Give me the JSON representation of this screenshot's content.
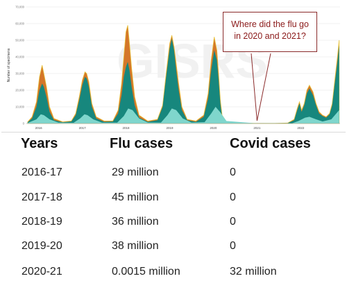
{
  "chart_data": {
    "type": "area",
    "ylabel": "Number of specimens",
    "ylim": [
      0,
      70000
    ],
    "yticks": [
      "0",
      "10,000",
      "20,000",
      "30,000",
      "40,000",
      "50,000",
      "60,000",
      "70,000"
    ],
    "xticks": [
      "2016",
      "2017",
      "2018",
      "2019",
      "2020",
      "2021",
      "2022"
    ],
    "colors": {
      "orange": "#d4762a",
      "teal": "#17877d",
      "light": "#7fd6cc",
      "yellow": "#e8c23a"
    },
    "series_total": {
      "x": [
        2015.75,
        2015.85,
        2015.95,
        2016.02,
        2016.08,
        2016.12,
        2016.18,
        2016.25,
        2016.35,
        2016.55,
        2016.75,
        2016.85,
        2016.93,
        2017.0,
        2017.06,
        2017.1,
        2017.15,
        2017.22,
        2017.32,
        2017.5,
        2017.7,
        2017.82,
        2017.9,
        2017.95,
        2018.0,
        2018.04,
        2018.08,
        2018.13,
        2018.2,
        2018.3,
        2018.5,
        2018.72,
        2018.84,
        2018.92,
        2019.0,
        2019.05,
        2019.1,
        2019.14,
        2019.2,
        2019.28,
        2019.4,
        2019.6,
        2019.78,
        2019.88,
        2019.95,
        2020.02,
        2020.08,
        2020.12,
        2020.16,
        2020.2,
        2020.3,
        2020.6,
        2021.0,
        2021.4,
        2021.7,
        2021.85,
        2021.92,
        2021.97,
        2022.02,
        2022.08,
        2022.14,
        2022.2,
        2022.28,
        2022.35,
        2022.42,
        2022.5,
        2022.58,
        2022.66,
        2022.72,
        2022.78,
        2022.84,
        2022.88
      ],
      "y": [
        1000,
        4000,
        13000,
        28000,
        35000,
        30000,
        22000,
        10000,
        3000,
        1000,
        1500,
        6000,
        16000,
        26000,
        31000,
        30000,
        25000,
        12000,
        4000,
        1500,
        1500,
        8000,
        24000,
        40000,
        55000,
        59000,
        48000,
        33000,
        16000,
        5000,
        1500,
        2500,
        11000,
        30000,
        48000,
        53000,
        46000,
        38000,
        25000,
        10000,
        2500,
        1500,
        5000,
        18000,
        38000,
        52000,
        44000,
        30000,
        14000,
        5000,
        1000,
        300,
        100,
        100,
        300,
        2500,
        9000,
        13000,
        8000,
        12000,
        20000,
        23000,
        19000,
        12000,
        7000,
        5000,
        4000,
        6000,
        12000,
        26000,
        40000,
        50000
      ]
    },
    "series_teal": {
      "x": [
        2015.75,
        2015.85,
        2015.95,
        2016.02,
        2016.08,
        2016.12,
        2016.18,
        2016.25,
        2016.35,
        2016.55,
        2016.75,
        2016.85,
        2016.93,
        2017.0,
        2017.06,
        2017.1,
        2017.15,
        2017.22,
        2017.32,
        2017.5,
        2017.7,
        2017.82,
        2017.9,
        2017.95,
        2018.0,
        2018.04,
        2018.08,
        2018.13,
        2018.2,
        2018.3,
        2018.5,
        2018.72,
        2018.84,
        2018.92,
        2019.0,
        2019.05,
        2019.1,
        2019.14,
        2019.2,
        2019.28,
        2019.4,
        2019.6,
        2019.78,
        2019.88,
        2019.95,
        2020.02,
        2020.08,
        2020.12,
        2020.16,
        2020.2,
        2020.3,
        2020.6,
        2021.0,
        2021.4,
        2021.7,
        2021.85,
        2021.92,
        2021.97,
        2022.02,
        2022.08,
        2022.14,
        2022.2,
        2022.28,
        2022.35,
        2022.42,
        2022.5,
        2022.58,
        2022.66,
        2022.72,
        2022.78,
        2022.84,
        2022.88
      ],
      "y": [
        700,
        3000,
        10000,
        20000,
        24000,
        22000,
        16000,
        7000,
        2000,
        700,
        1200,
        5000,
        14000,
        23000,
        28000,
        27000,
        22000,
        10000,
        3000,
        1000,
        1200,
        6000,
        17000,
        28000,
        34000,
        37000,
        32000,
        22000,
        11000,
        3500,
        1000,
        2000,
        10000,
        28000,
        45000,
        51000,
        44000,
        34000,
        21000,
        8000,
        2000,
        1000,
        4000,
        15000,
        32000,
        44000,
        38000,
        26000,
        12000,
        4000,
        800,
        200,
        80,
        80,
        200,
        2000,
        8000,
        12000,
        7000,
        11000,
        18000,
        21000,
        17000,
        11000,
        6000,
        4500,
        3500,
        5500,
        11000,
        24000,
        37000,
        47000
      ]
    },
    "series_light": {
      "x": [
        2015.75,
        2015.95,
        2016.05,
        2016.12,
        2016.25,
        2016.45,
        2016.8,
        2016.95,
        2017.05,
        2017.12,
        2017.25,
        2017.45,
        2017.8,
        2017.95,
        2018.05,
        2018.15,
        2018.3,
        2018.5,
        2018.8,
        2018.95,
        2019.05,
        2019.15,
        2019.3,
        2019.5,
        2019.8,
        2019.95,
        2020.05,
        2020.15,
        2020.3,
        2021.0,
        2021.8,
        2021.95,
        2022.1,
        2022.2,
        2022.35,
        2022.5,
        2022.7,
        2022.88
      ],
      "y": [
        300,
        2500,
        5500,
        5000,
        2500,
        600,
        400,
        3000,
        5500,
        5000,
        2500,
        500,
        500,
        4500,
        9000,
        8000,
        3000,
        600,
        500,
        5000,
        9000,
        8000,
        3000,
        600,
        800,
        6000,
        10000,
        7000,
        1500,
        50,
        100,
        1500,
        3500,
        4000,
        2500,
        1200,
        2500,
        8000
      ]
    }
  },
  "watermark": "GISRS",
  "callout": {
    "line1": "Where did the flu go",
    "line2": "in 2020 and 2021?"
  },
  "table": {
    "headers": [
      "Years",
      "Flu cases",
      "Covid cases"
    ],
    "rows": [
      [
        "2016-17",
        "29 million",
        "0"
      ],
      [
        "2017-18",
        "45 million",
        "0"
      ],
      [
        "2018-19",
        "36 million",
        "0"
      ],
      [
        "2019-20",
        "38 million",
        "0"
      ],
      [
        "2020-21",
        "0.0015 million",
        "32 million"
      ]
    ]
  }
}
